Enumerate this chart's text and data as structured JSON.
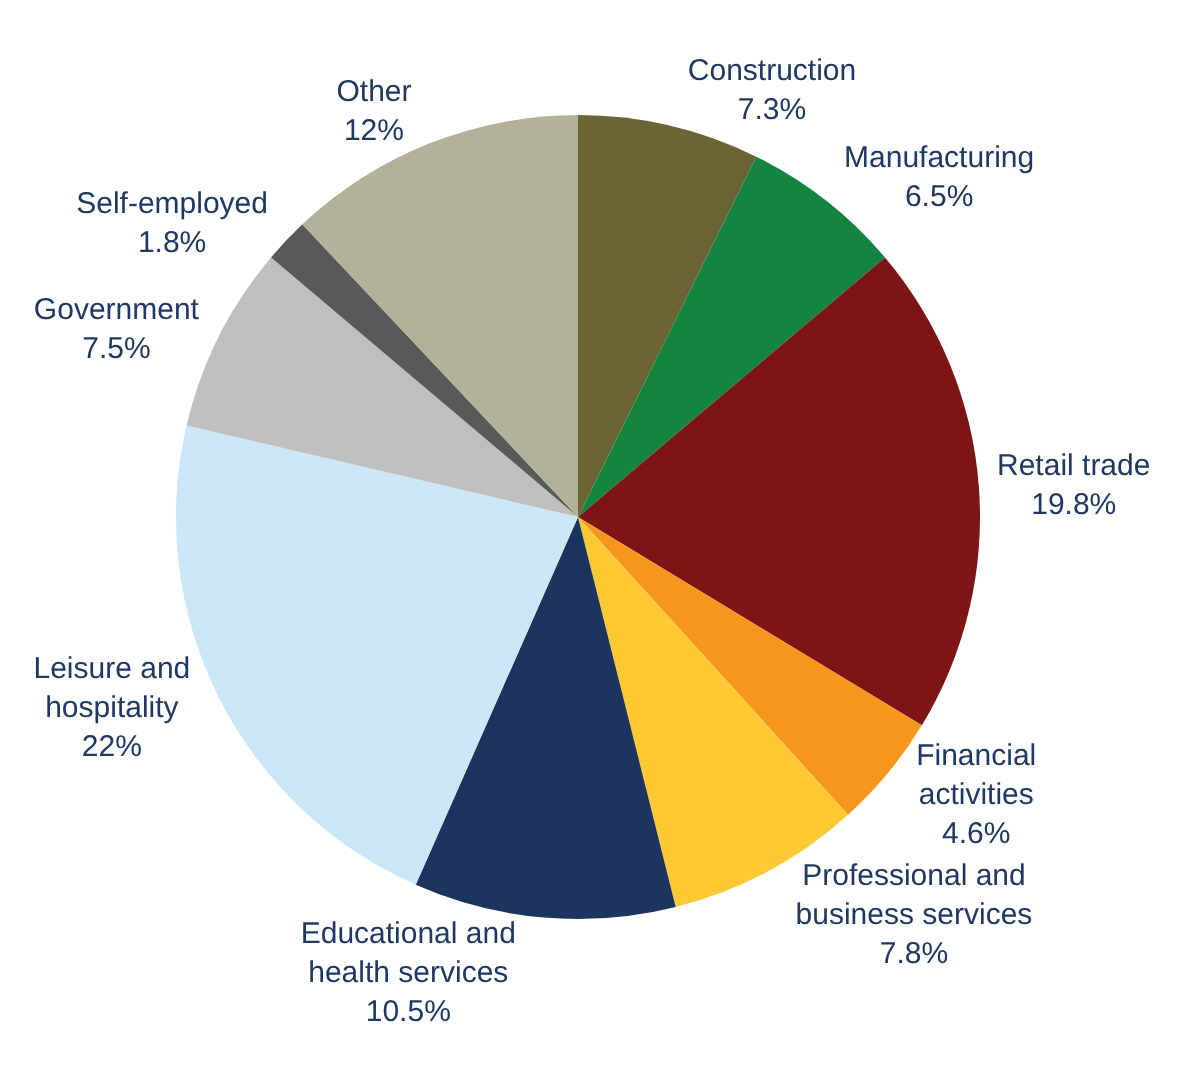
{
  "chart_data": {
    "type": "pie",
    "categories": [
      "Construction",
      "Manufacturing",
      "Retail trade",
      "Financial\nactivities",
      "Professional and\nbusiness services",
      "Educational and\nhealth services",
      "Leisure and\nhospitality",
      "Government",
      "Self-employed",
      "Other"
    ],
    "values": [
      7.3,
      6.5,
      19.8,
      4.6,
      7.8,
      10.5,
      22,
      7.5,
      1.8,
      12
    ],
    "value_labels": [
      "7.3%",
      "6.5%",
      "19.8%",
      "4.6%",
      "7.8%",
      "10.5%",
      "22%",
      "7.5%",
      "1.8%",
      "12%"
    ],
    "colors": [
      "#6b6535",
      "#138540",
      "#7d1416",
      "#f7961d",
      "#ffc933",
      "#1c355e",
      "#cce8f8",
      "#bfbfbf",
      "#595959",
      "#b2b29a"
    ],
    "legend": false
  }
}
